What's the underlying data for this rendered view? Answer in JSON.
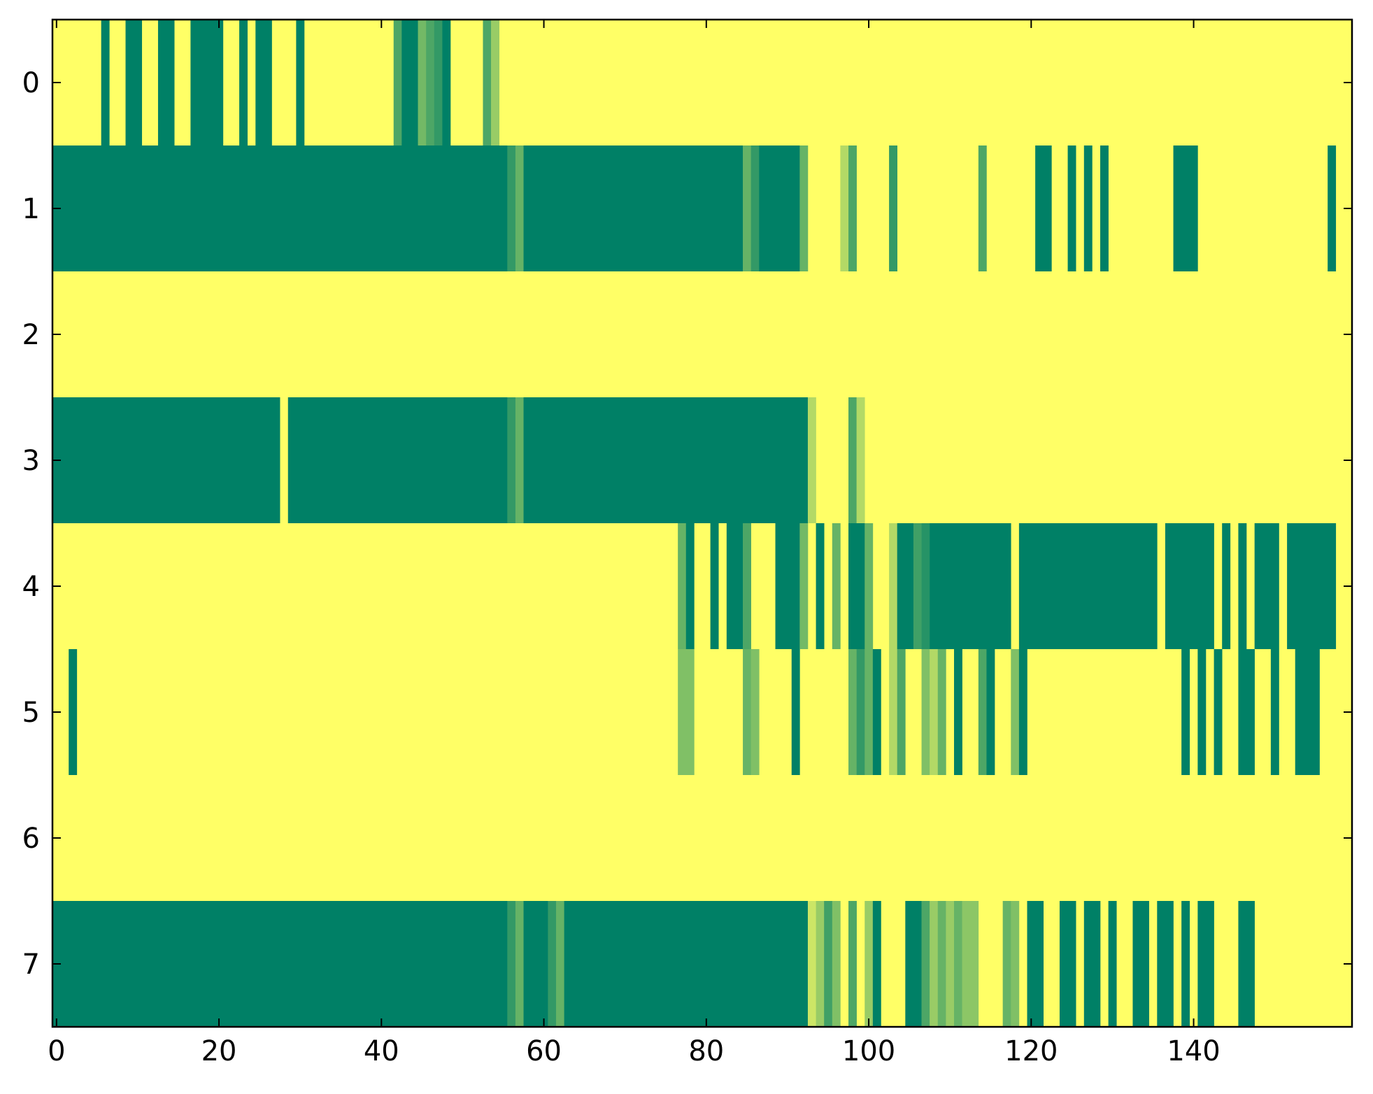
{
  "chart_data": {
    "type": "heatmap",
    "title": "",
    "xlabel": "",
    "ylabel": "",
    "xlim": [
      -0.5,
      159.5
    ],
    "ylim": [
      7.5,
      -0.5
    ],
    "x_ticks": [
      0,
      20,
      40,
      60,
      80,
      100,
      120,
      140
    ],
    "x_tick_labels": [
      "0",
      "20",
      "40",
      "60",
      "80",
      "100",
      "120",
      "140"
    ],
    "y_ticks": [
      0,
      1,
      2,
      3,
      4,
      5,
      6,
      7
    ],
    "y_tick_labels": [
      "0",
      "1",
      "2",
      "3",
      "4",
      "5",
      "6",
      "7"
    ],
    "n_rows": 8,
    "n_cols": 160,
    "colormap": "summer_r",
    "value_range": [
      0,
      1
    ],
    "colors": {
      "low": "#ffff66",
      "high": "#008066"
    },
    "background_value": 0,
    "row_segments": [
      {
        "row": 0,
        "segments": [
          [
            6,
            6,
            1
          ],
          [
            9,
            10,
            1
          ],
          [
            13,
            14,
            1
          ],
          [
            17,
            20,
            1
          ],
          [
            23,
            23,
            1
          ],
          [
            25,
            26,
            1
          ],
          [
            30,
            30,
            1
          ],
          [
            42,
            42,
            0.7
          ],
          [
            43,
            44,
            1
          ],
          [
            45,
            45,
            0.55
          ],
          [
            46,
            46,
            0.7
          ],
          [
            47,
            47,
            0.8
          ],
          [
            48,
            48,
            1
          ],
          [
            53,
            53,
            0.7
          ],
          [
            54,
            54,
            0.4
          ]
        ]
      },
      {
        "row": 1,
        "segments": [
          [
            0,
            55,
            1
          ],
          [
            56,
            56,
            0.8
          ],
          [
            57,
            57,
            0.6
          ],
          [
            58,
            84,
            1
          ],
          [
            85,
            85,
            0.6
          ],
          [
            86,
            86,
            0.8
          ],
          [
            87,
            91,
            1
          ],
          [
            92,
            92,
            0.6
          ],
          [
            97,
            97,
            0.3
          ],
          [
            98,
            98,
            0.7
          ],
          [
            103,
            103,
            0.8
          ],
          [
            114,
            114,
            0.7
          ],
          [
            121,
            122,
            1
          ],
          [
            125,
            125,
            1
          ],
          [
            127,
            127,
            1
          ],
          [
            129,
            129,
            1
          ],
          [
            138,
            140,
            1
          ],
          [
            157,
            157,
            1
          ]
        ]
      },
      {
        "row": 2,
        "segments": []
      },
      {
        "row": 3,
        "segments": [
          [
            0,
            27,
            1
          ],
          [
            29,
            55,
            1
          ],
          [
            56,
            56,
            0.8
          ],
          [
            57,
            57,
            0.6
          ],
          [
            58,
            92,
            1
          ],
          [
            93,
            93,
            0.3
          ],
          [
            98,
            98,
            0.7
          ],
          [
            99,
            99,
            0.3
          ]
        ]
      },
      {
        "row": 4,
        "segments": [
          [
            77,
            77,
            0.6
          ],
          [
            78,
            78,
            1
          ],
          [
            81,
            81,
            1
          ],
          [
            83,
            84,
            1
          ],
          [
            85,
            85,
            0.7
          ],
          [
            89,
            91,
            1
          ],
          [
            92,
            92,
            0.55
          ],
          [
            94,
            94,
            1
          ],
          [
            96,
            96,
            0.6
          ],
          [
            98,
            99,
            1
          ],
          [
            100,
            100,
            0.6
          ],
          [
            103,
            103,
            0.3
          ],
          [
            104,
            105,
            1
          ],
          [
            106,
            106,
            0.75
          ],
          [
            107,
            107,
            0.85
          ],
          [
            108,
            117,
            1
          ],
          [
            119,
            135,
            1
          ],
          [
            137,
            142,
            1
          ],
          [
            144,
            144,
            1
          ],
          [
            146,
            146,
            1
          ],
          [
            148,
            150,
            1
          ],
          [
            152,
            157,
            1
          ]
        ]
      },
      {
        "row": 5,
        "segments": [
          [
            2,
            2,
            1
          ],
          [
            77,
            78,
            0.5
          ],
          [
            85,
            85,
            0.6
          ],
          [
            86,
            86,
            0.5
          ],
          [
            91,
            91,
            1
          ],
          [
            98,
            98,
            0.6
          ],
          [
            99,
            99,
            0.8
          ],
          [
            100,
            100,
            0.6
          ],
          [
            101,
            101,
            1
          ],
          [
            103,
            103,
            0.3
          ],
          [
            104,
            104,
            0.7
          ],
          [
            107,
            107,
            0.5
          ],
          [
            108,
            108,
            0.3
          ],
          [
            109,
            109,
            0.6
          ],
          [
            111,
            111,
            1
          ],
          [
            114,
            114,
            0.7
          ],
          [
            115,
            115,
            1
          ],
          [
            118,
            118,
            0.5
          ],
          [
            119,
            119,
            1
          ],
          [
            139,
            139,
            1
          ],
          [
            141,
            141,
            1
          ],
          [
            143,
            143,
            1
          ],
          [
            146,
            147,
            1
          ],
          [
            150,
            150,
            1
          ],
          [
            153,
            155,
            1
          ]
        ]
      },
      {
        "row": 6,
        "segments": []
      },
      {
        "row": 7,
        "segments": [
          [
            0,
            55,
            1
          ],
          [
            56,
            56,
            0.8
          ],
          [
            57,
            57,
            0.6
          ],
          [
            58,
            60,
            1
          ],
          [
            61,
            61,
            0.8
          ],
          [
            62,
            62,
            0.6
          ],
          [
            63,
            92,
            1
          ],
          [
            93,
            93,
            0.2
          ],
          [
            94,
            94,
            0.4
          ],
          [
            95,
            95,
            0.75
          ],
          [
            96,
            96,
            0.5
          ],
          [
            98,
            98,
            0.7
          ],
          [
            100,
            100,
            0.4
          ],
          [
            101,
            101,
            1
          ],
          [
            105,
            106,
            1
          ],
          [
            107,
            107,
            0.7
          ],
          [
            108,
            108,
            0.4
          ],
          [
            109,
            109,
            0.6
          ],
          [
            110,
            110,
            0.4
          ],
          [
            111,
            111,
            0.6
          ],
          [
            112,
            113,
            0.45
          ],
          [
            117,
            117,
            0.6
          ],
          [
            118,
            118,
            0.5
          ],
          [
            120,
            121,
            1
          ],
          [
            124,
            125,
            1
          ],
          [
            127,
            128,
            1
          ],
          [
            130,
            130,
            1
          ],
          [
            133,
            134,
            1
          ],
          [
            136,
            137,
            1
          ],
          [
            139,
            139,
            1
          ],
          [
            141,
            142,
            1
          ],
          [
            146,
            147,
            1
          ]
        ]
      }
    ]
  }
}
